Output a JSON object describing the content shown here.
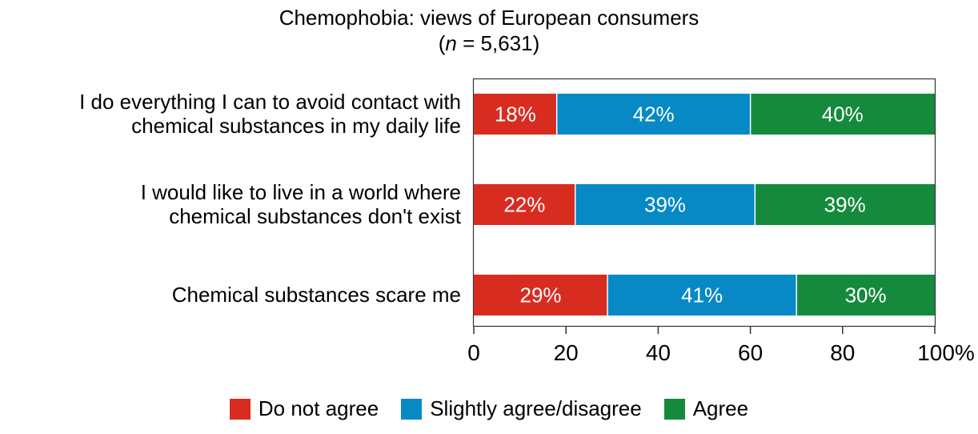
{
  "chart_data": {
    "type": "bar",
    "orientation": "horizontal",
    "stacked": true,
    "title": "Chemophobia: views of European consumers",
    "subtitle_prefix": "(",
    "subtitle_n": "n",
    "subtitle_rest": " = 5,631)",
    "categories": [
      [
        "I do everything I can to avoid contact with",
        "chemical substances in my daily life"
      ],
      [
        "I would like to live in a world where",
        "chemical substances don't exist"
      ],
      [
        "Chemical substances scare me"
      ]
    ],
    "series": [
      {
        "name": "Do not agree",
        "color": "#d92c20",
        "values": [
          18,
          22,
          29
        ],
        "labels": [
          "18%",
          "22%",
          "29%"
        ]
      },
      {
        "name": "Slightly agree/disagree",
        "color": "#0789c5",
        "values": [
          42,
          39,
          41
        ],
        "labels": [
          "42%",
          "39%",
          "41%"
        ]
      },
      {
        "name": "Agree",
        "color": "#158a3d",
        "values": [
          40,
          39,
          30
        ],
        "labels": [
          "40%",
          "39%",
          "30%"
        ]
      }
    ],
    "xlim": [
      0,
      100
    ],
    "xticks": [
      0,
      20,
      40,
      60,
      80,
      100
    ],
    "xtick_labels": [
      "0",
      "20",
      "40",
      "60",
      "80",
      "100%"
    ],
    "xlabel": "",
    "ylabel": "",
    "grid": false,
    "legend_position": "bottom"
  }
}
